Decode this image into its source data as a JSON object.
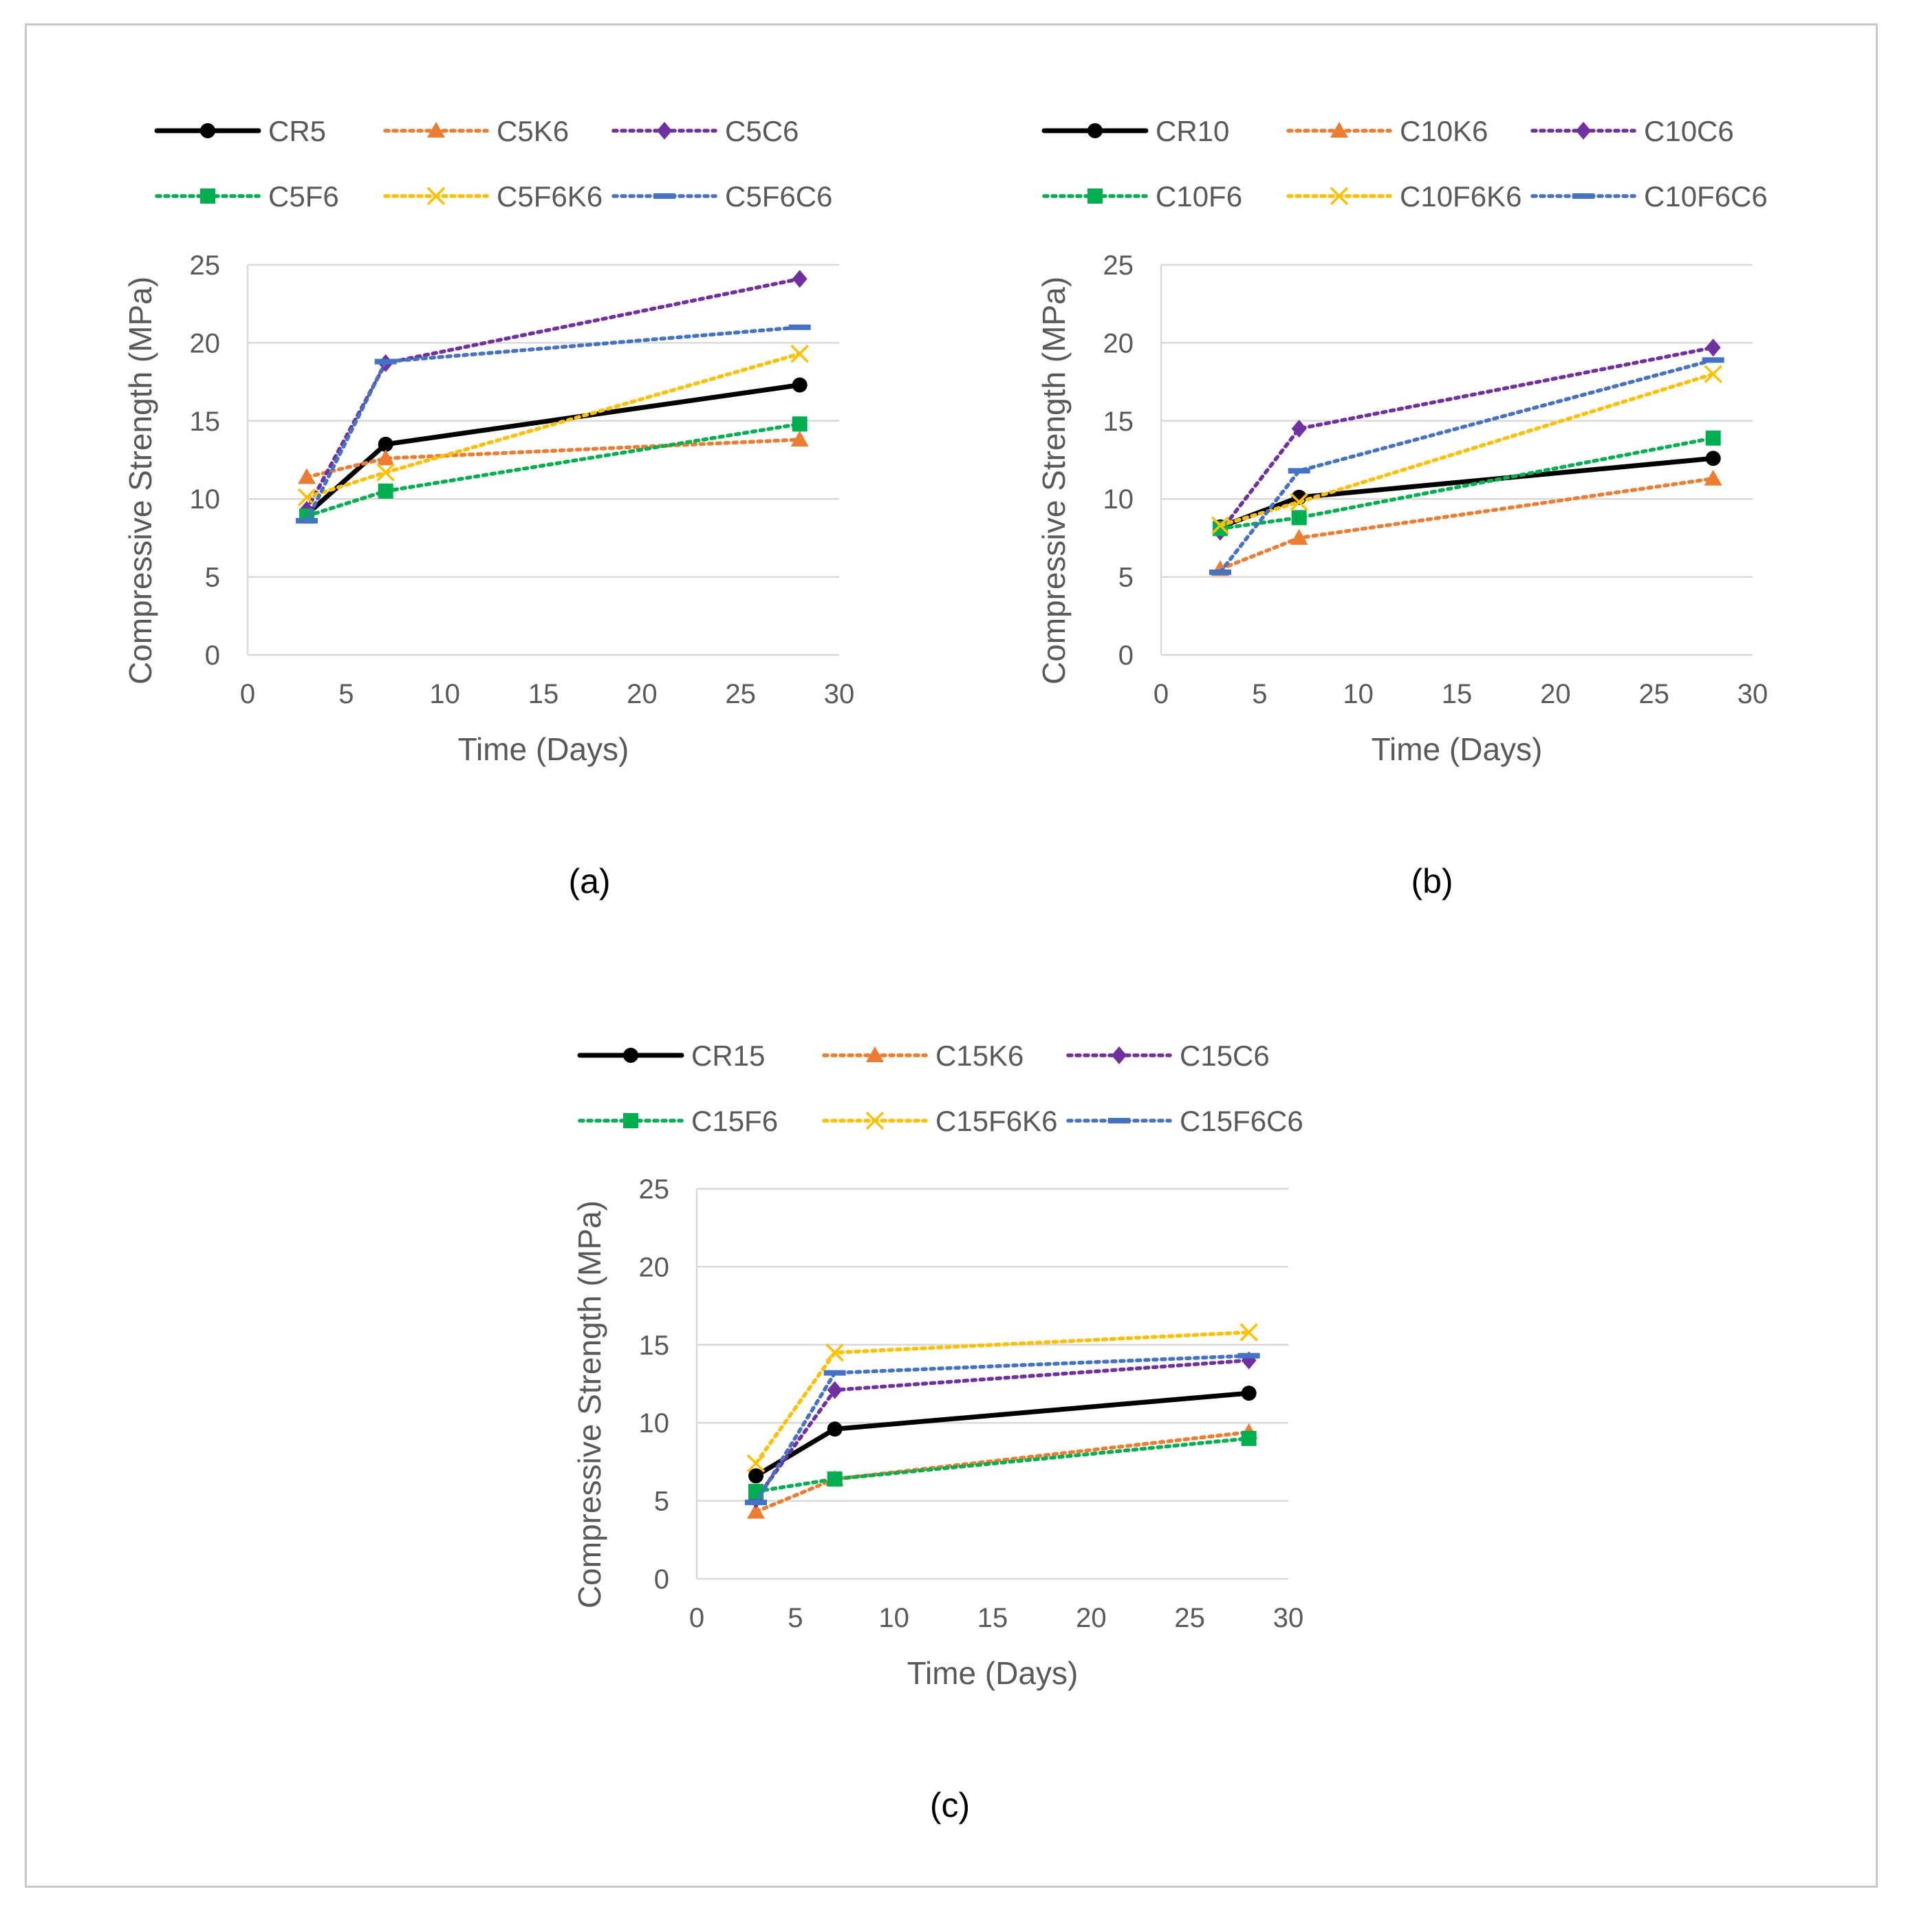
{
  "chart_data": [
    {
      "type": "line",
      "panel_label": "(a)",
      "title": "",
      "xlabel": "Time (Days)",
      "ylabel": "Compressive Strength (MPa)",
      "xlim": [
        0,
        30
      ],
      "ylim": [
        0,
        25
      ],
      "xticks": [
        "0",
        "5",
        "10",
        "15",
        "20",
        "25",
        "30"
      ],
      "yticks": [
        "0",
        "5",
        "10",
        "15",
        "20",
        "25"
      ],
      "grid": "horizontal",
      "legend": "top",
      "x": [
        3,
        7,
        28
      ],
      "series": [
        {
          "name": "CR5",
          "values": [
            9.0,
            13.5,
            17.3
          ],
          "color": "#000000",
          "style": "solid",
          "marker": "circle"
        },
        {
          "name": "C5K6",
          "values": [
            11.4,
            12.6,
            13.8
          ],
          "color": "#ed7d31",
          "style": "dotted",
          "marker": "triangle"
        },
        {
          "name": "C5C6",
          "values": [
            9.3,
            18.7,
            24.1
          ],
          "color": "#7030a0",
          "style": "dotted",
          "marker": "diamond"
        },
        {
          "name": "C5F6",
          "values": [
            8.9,
            10.5,
            14.8
          ],
          "color": "#00b050",
          "style": "dotted",
          "marker": "square"
        },
        {
          "name": "C5F6K6",
          "values": [
            10.1,
            11.7,
            19.3
          ],
          "color": "#ffc000",
          "style": "dotted",
          "marker": "x"
        },
        {
          "name": "C5F6C6",
          "values": [
            8.6,
            18.8,
            21.0
          ],
          "color": "#4472c4",
          "style": "dotted",
          "marker": "dash"
        }
      ]
    },
    {
      "type": "line",
      "panel_label": "(b)",
      "title": "",
      "xlabel": "Time (Days)",
      "ylabel": "Compressive Strength (MPa)",
      "xlim": [
        0,
        30
      ],
      "ylim": [
        0,
        25
      ],
      "xticks": [
        "0",
        "5",
        "10",
        "15",
        "20",
        "25",
        "30"
      ],
      "yticks": [
        "0",
        "5",
        "10",
        "15",
        "20",
        "25"
      ],
      "grid": "horizontal",
      "legend": "top",
      "x": [
        3,
        7,
        28
      ],
      "series": [
        {
          "name": "CR10",
          "values": [
            8.2,
            10.1,
            12.6
          ],
          "color": "#000000",
          "style": "solid",
          "marker": "circle"
        },
        {
          "name": "C10K6",
          "values": [
            5.5,
            7.5,
            11.3
          ],
          "color": "#ed7d31",
          "style": "dotted",
          "marker": "triangle"
        },
        {
          "name": "C10C6",
          "values": [
            7.9,
            14.5,
            19.7
          ],
          "color": "#7030a0",
          "style": "dotted",
          "marker": "diamond"
        },
        {
          "name": "C10F6",
          "values": [
            8.1,
            8.8,
            13.9
          ],
          "color": "#00b050",
          "style": "dotted",
          "marker": "square"
        },
        {
          "name": "C10F6K6",
          "values": [
            8.3,
            9.8,
            18.0
          ],
          "color": "#ffc000",
          "style": "dotted",
          "marker": "x"
        },
        {
          "name": "C10F6C6",
          "values": [
            5.3,
            11.8,
            18.9
          ],
          "color": "#4472c4",
          "style": "dotted",
          "marker": "dash"
        }
      ]
    },
    {
      "type": "line",
      "panel_label": "(c)",
      "title": "",
      "xlabel": "Time (Days)",
      "ylabel": "Compressive Strength (MPa)",
      "xlim": [
        0,
        30
      ],
      "ylim": [
        0,
        25
      ],
      "xticks": [
        "0",
        "5",
        "10",
        "15",
        "20",
        "25",
        "30"
      ],
      "yticks": [
        "0",
        "5",
        "10",
        "15",
        "20",
        "25"
      ],
      "grid": "horizontal",
      "legend": "top",
      "x": [
        3,
        7,
        28
      ],
      "series": [
        {
          "name": "CR15",
          "values": [
            6.6,
            9.6,
            11.9
          ],
          "color": "#000000",
          "style": "solid",
          "marker": "circle"
        },
        {
          "name": "C15K6",
          "values": [
            4.3,
            6.4,
            9.4
          ],
          "color": "#ed7d31",
          "style": "dotted",
          "marker": "triangle"
        },
        {
          "name": "C15C6",
          "values": [
            5.1,
            12.1,
            14.0
          ],
          "color": "#7030a0",
          "style": "dotted",
          "marker": "diamond"
        },
        {
          "name": "C15F6",
          "values": [
            5.6,
            6.4,
            9.0
          ],
          "color": "#00b050",
          "style": "dotted",
          "marker": "square"
        },
        {
          "name": "C15F6K6",
          "values": [
            7.4,
            14.5,
            15.8
          ],
          "color": "#ffc000",
          "style": "dotted",
          "marker": "x"
        },
        {
          "name": "C15F6C6",
          "values": [
            4.9,
            13.2,
            14.3
          ],
          "color": "#4472c4",
          "style": "dotted",
          "marker": "dash"
        }
      ]
    }
  ]
}
